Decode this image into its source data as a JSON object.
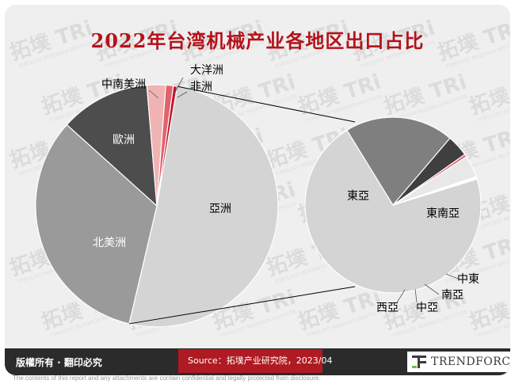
{
  "title": "2022年台湾机械产业各地区出口占比",
  "chart_data": [
    {
      "type": "pie",
      "categories": [
        "亞洲",
        "北美洲",
        "歐洲",
        "中南美洲",
        "大洋洲",
        "非洲"
      ],
      "values": [
        51,
        33,
        12,
        2.5,
        1,
        0.5
      ],
      "colors": [
        "#d4d4d4",
        "#9a9a9a",
        "#4d4d4d",
        "#f0b3b3",
        "#e0636c",
        "#c8102e"
      ]
    },
    {
      "type": "pie",
      "categories": [
        "東亞",
        "東南亞",
        "中東",
        "南亞",
        "中亞",
        "西亞"
      ],
      "values": [
        71,
        20,
        4,
        0.5,
        4,
        0.5
      ],
      "colors": [
        "#d4d4d4",
        "#7f7f7f",
        "#3f3f3f",
        "#e0636c",
        "#e8e8e8",
        "#ffffff"
      ]
    }
  ],
  "footer": {
    "copyright": "版權所有 · 翻印必究",
    "source": "Source：拓墣产业研究院，2023/04",
    "logo": "TRENDFORCE"
  },
  "watermark": {
    "brand": "拓墣",
    "latin": "TRi",
    "sub": "TOPOLOGY RESEARCH INSTITUTE"
  },
  "disclaimer": "The contents of this report and any attachments are contain confidential and legally protected from disclosure."
}
